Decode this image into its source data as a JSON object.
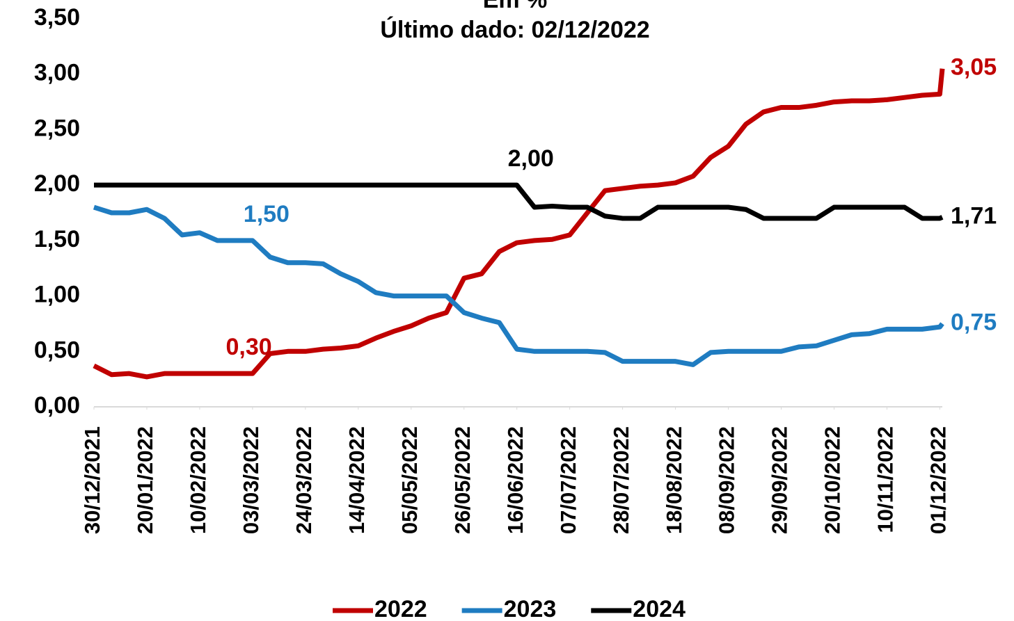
{
  "chart_data": {
    "type": "line",
    "title": "Em %",
    "subtitle": "Último dado: 02/12/2022",
    "x": [
      "30/12/2021",
      "06/01/2022",
      "13/01/2022",
      "20/01/2022",
      "27/01/2022",
      "03/02/2022",
      "10/02/2022",
      "17/02/2022",
      "24/02/2022",
      "03/03/2022",
      "10/03/2022",
      "17/03/2022",
      "24/03/2022",
      "31/03/2022",
      "07/04/2022",
      "14/04/2022",
      "21/04/2022",
      "28/04/2022",
      "05/05/2022",
      "12/05/2022",
      "19/05/2022",
      "26/05/2022",
      "02/06/2022",
      "09/06/2022",
      "16/06/2022",
      "23/06/2022",
      "30/06/2022",
      "07/07/2022",
      "14/07/2022",
      "21/07/2022",
      "28/07/2022",
      "04/08/2022",
      "11/08/2022",
      "18/08/2022",
      "25/08/2022",
      "01/09/2022",
      "08/09/2022",
      "15/09/2022",
      "22/09/2022",
      "29/09/2022",
      "06/10/2022",
      "13/10/2022",
      "20/10/2022",
      "27/10/2022",
      "03/11/2022",
      "10/11/2022",
      "17/11/2022",
      "24/11/2022",
      "01/12/2022",
      "02/12/2022"
    ],
    "series": [
      {
        "name": "2022",
        "color": "#c00000",
        "values": [
          0.37,
          0.29,
          0.3,
          0.27,
          0.3,
          0.3,
          0.3,
          0.3,
          0.3,
          0.3,
          0.48,
          0.5,
          0.5,
          0.52,
          0.53,
          0.55,
          0.62,
          0.68,
          0.73,
          0.8,
          0.85,
          1.16,
          1.2,
          1.4,
          1.48,
          1.5,
          1.51,
          1.55,
          1.75,
          1.95,
          1.97,
          1.99,
          2.0,
          2.02,
          2.08,
          2.25,
          2.35,
          2.55,
          2.66,
          2.7,
          2.7,
          2.72,
          2.75,
          2.76,
          2.76,
          2.77,
          2.79,
          2.81,
          2.82,
          3.05
        ],
        "value_labels": [
          null,
          null,
          null,
          null,
          null,
          null,
          null,
          null,
          "0,30",
          null,
          null,
          null,
          null,
          null,
          null,
          null,
          null,
          null,
          null,
          null,
          null,
          null,
          null,
          null,
          null,
          null,
          null,
          null,
          null,
          null,
          null,
          null,
          null,
          null,
          null,
          null,
          null,
          null,
          null,
          null,
          null,
          null,
          null,
          null,
          null,
          null,
          null,
          null,
          null,
          "3,05"
        ]
      },
      {
        "name": "2023",
        "color": "#1f7cc1",
        "values": [
          1.8,
          1.75,
          1.75,
          1.78,
          1.7,
          1.55,
          1.57,
          1.5,
          1.5,
          1.5,
          1.35,
          1.3,
          1.3,
          1.29,
          1.2,
          1.13,
          1.03,
          1.0,
          1.0,
          1.0,
          1.0,
          0.85,
          0.8,
          0.76,
          0.52,
          0.5,
          0.5,
          0.5,
          0.5,
          0.49,
          0.41,
          0.41,
          0.41,
          0.41,
          0.38,
          0.49,
          0.5,
          0.5,
          0.5,
          0.5,
          0.54,
          0.55,
          0.6,
          0.65,
          0.66,
          0.7,
          0.7,
          0.7,
          0.72,
          0.75
        ],
        "value_labels": [
          null,
          null,
          null,
          null,
          null,
          null,
          null,
          null,
          null,
          "1,50",
          null,
          null,
          null,
          null,
          null,
          null,
          null,
          null,
          null,
          null,
          null,
          null,
          null,
          null,
          null,
          null,
          null,
          null,
          null,
          null,
          null,
          null,
          null,
          null,
          null,
          null,
          null,
          null,
          null,
          null,
          null,
          null,
          null,
          null,
          null,
          null,
          null,
          null,
          null,
          "0,75"
        ]
      },
      {
        "name": "2024",
        "color": "#000000",
        "values": [
          2.0,
          2.0,
          2.0,
          2.0,
          2.0,
          2.0,
          2.0,
          2.0,
          2.0,
          2.0,
          2.0,
          2.0,
          2.0,
          2.0,
          2.0,
          2.0,
          2.0,
          2.0,
          2.0,
          2.0,
          2.0,
          2.0,
          2.0,
          2.0,
          2.0,
          1.8,
          1.81,
          1.8,
          1.8,
          1.72,
          1.7,
          1.7,
          1.8,
          1.8,
          1.8,
          1.8,
          1.8,
          1.78,
          1.7,
          1.7,
          1.7,
          1.7,
          1.8,
          1.8,
          1.8,
          1.8,
          1.8,
          1.7,
          1.7,
          1.71
        ],
        "value_labels": [
          null,
          null,
          null,
          null,
          null,
          null,
          null,
          null,
          null,
          null,
          null,
          null,
          null,
          null,
          null,
          null,
          null,
          null,
          null,
          null,
          null,
          null,
          null,
          null,
          "2,00",
          null,
          null,
          null,
          null,
          null,
          null,
          null,
          null,
          null,
          null,
          null,
          null,
          null,
          null,
          null,
          null,
          null,
          null,
          null,
          null,
          null,
          null,
          null,
          null,
          "1,71"
        ]
      }
    ],
    "xlim": [
      "30/12/2021",
      "02/12/2022"
    ],
    "xticks": [
      "30/12/2021",
      "20/01/2022",
      "10/02/2022",
      "03/03/2022",
      "24/03/2022",
      "14/04/2022",
      "05/05/2022",
      "26/05/2022",
      "16/06/2022",
      "07/07/2022",
      "28/07/2022",
      "18/08/2022",
      "08/09/2022",
      "29/09/2022",
      "20/10/2022",
      "10/11/2022",
      "01/12/2022"
    ],
    "ylim": [
      0,
      3.5
    ],
    "yticks": [
      {
        "value": 0,
        "label": "0,00"
      },
      {
        "value": 0.5,
        "label": "0,50"
      },
      {
        "value": 1,
        "label": "1,00"
      },
      {
        "value": 1.5,
        "label": "1,50"
      },
      {
        "value": 2,
        "label": "2,00"
      },
      {
        "value": 2.5,
        "label": "2,50"
      },
      {
        "value": 3,
        "label": "3,00"
      },
      {
        "value": 3.5,
        "label": "3,50"
      }
    ],
    "grid": false,
    "legend": "bottom"
  }
}
